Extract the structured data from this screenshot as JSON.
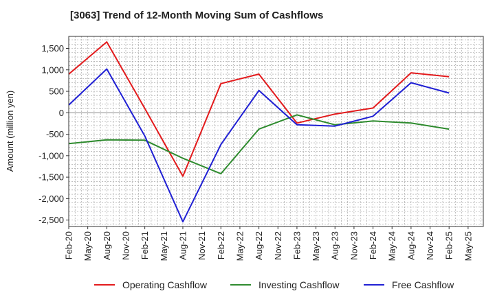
{
  "chart_data": {
    "type": "line",
    "title": "[3063]  Trend of 12-Month Moving Sum of Cashflows",
    "xlabel": "",
    "ylabel": "Amount (million yen)",
    "ylim": [
      -2650,
      1780
    ],
    "y_ticks": [
      1500,
      1000,
      500,
      0,
      -500,
      -1000,
      -1500,
      -2000,
      -2500
    ],
    "y_tick_labels": [
      "1,500",
      "1,000",
      "500",
      "0",
      "-500",
      "-1,000",
      "-1,500",
      "-2,000",
      "-2,500"
    ],
    "x_labels": [
      "Feb-20",
      "May-20",
      "Aug-20",
      "Nov-20",
      "Feb-21",
      "May-21",
      "Aug-21",
      "Nov-21",
      "Feb-22",
      "May-22",
      "Aug-22",
      "Nov-22",
      "Feb-23",
      "May-23",
      "Aug-23",
      "Nov-23",
      "Feb-24",
      "May-24",
      "Aug-24",
      "Nov-24",
      "Feb-25",
      "May-25"
    ],
    "grid": true,
    "legend_position": "bottom",
    "series": [
      {
        "name": "Operating Cashflow",
        "color": "#e31a1c",
        "x": [
          "Feb-20",
          "Aug-20",
          "Feb-21",
          "Aug-21",
          "Feb-22",
          "Aug-22",
          "Feb-23",
          "Aug-23",
          "Feb-24",
          "Aug-24",
          "Feb-25"
        ],
        "values": [
          900,
          1650,
          100,
          -1480,
          680,
          900,
          -240,
          -30,
          110,
          930,
          840
        ]
      },
      {
        "name": "Investing Cashflow",
        "color": "#2e8b2e",
        "x": [
          "Feb-20",
          "Aug-20",
          "Feb-21",
          "Aug-21",
          "Feb-22",
          "Aug-22",
          "Feb-23",
          "Aug-23",
          "Feb-24",
          "Aug-24",
          "Feb-25"
        ],
        "values": [
          -720,
          -630,
          -640,
          -1060,
          -1420,
          -380,
          -50,
          -280,
          -190,
          -240,
          -380
        ]
      },
      {
        "name": "Free Cashflow",
        "color": "#1f1fd4",
        "x": [
          "Feb-20",
          "Aug-20",
          "Feb-21",
          "Aug-21",
          "Feb-22",
          "Aug-22",
          "Feb-23",
          "Aug-23",
          "Feb-24",
          "Aug-24",
          "Feb-25"
        ],
        "values": [
          180,
          1020,
          -540,
          -2540,
          -740,
          520,
          -280,
          -310,
          -80,
          700,
          460
        ]
      }
    ]
  }
}
